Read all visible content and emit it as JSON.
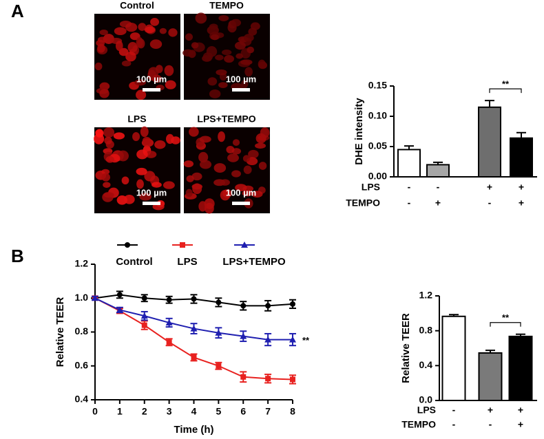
{
  "figure": {
    "panel_labels": [
      "A",
      "B"
    ]
  },
  "images": [
    {
      "title": "Control",
      "scale_bar": "100 µm"
    },
    {
      "title": "TEMPO",
      "scale_bar": "100 µm"
    },
    {
      "title": "LPS",
      "scale_bar": "100 µm"
    },
    {
      "title": "LPS+TEMPO",
      "scale_bar": "100 µm"
    }
  ],
  "chart_data": [
    {
      "type": "bar",
      "ylabel": "DHE intensity",
      "ylim": [
        0,
        0.15
      ],
      "yticks": [
        {
          "value": 0,
          "label": "0.00"
        },
        {
          "value": 0.05,
          "label": "0.05"
        },
        {
          "value": 0.1,
          "label": "0.10"
        },
        {
          "value": 0.15,
          "label": "0.15"
        }
      ],
      "values": [
        0.045,
        0.02,
        0.115,
        0.064
      ],
      "errors": [
        0.006,
        0.004,
        0.011,
        0.009
      ],
      "colors": [
        "#ffffff",
        "#a6a6a6",
        "#6e6e6e",
        "#000000"
      ],
      "conditions": [
        {
          "name": "LPS",
          "signs": [
            "-",
            "-",
            "+",
            "+"
          ]
        },
        {
          "name": "TEMPO",
          "signs": [
            "-",
            "+",
            "-",
            "+"
          ]
        }
      ],
      "annotation": "**"
    },
    {
      "type": "line",
      "xlabel": "Time (h)",
      "ylabel": "Relative TEER",
      "x": [
        0,
        1,
        2,
        3,
        4,
        5,
        6,
        7,
        8
      ],
      "xlim": [
        0,
        8
      ],
      "xticks": [
        0,
        1,
        2,
        3,
        4,
        5,
        6,
        7,
        8
      ],
      "ylim": [
        0.4,
        1.2
      ],
      "yticks": [
        0.4,
        0.6,
        0.8,
        {
          "value": 1,
          "label": "1.0"
        },
        1.2
      ],
      "series": [
        {
          "name": "Control",
          "color": "#000000",
          "marker": "circle",
          "values": [
            1.0,
            1.02,
            1.0,
            0.99,
            0.995,
            0.975,
            0.955,
            0.955,
            0.965
          ],
          "errors": [
            0.01,
            0.02,
            0.02,
            0.02,
            0.025,
            0.025,
            0.025,
            0.03,
            0.025
          ]
        },
        {
          "name": "LPS",
          "color": "#e8211f",
          "marker": "square",
          "values": [
            1.0,
            0.925,
            0.84,
            0.74,
            0.65,
            0.6,
            0.535,
            0.525,
            0.52
          ],
          "errors": [
            0.01,
            0.015,
            0.025,
            0.02,
            0.02,
            0.02,
            0.03,
            0.025,
            0.025
          ]
        },
        {
          "name": "LPS+TEMPO",
          "color": "#1f1fb0",
          "marker": "triangle",
          "values": [
            1.0,
            0.93,
            0.895,
            0.855,
            0.82,
            0.795,
            0.775,
            0.755,
            0.755
          ],
          "errors": [
            0.01,
            0.015,
            0.025,
            0.025,
            0.03,
            0.03,
            0.03,
            0.035,
            0.035
          ]
        }
      ],
      "annotation": "**"
    },
    {
      "type": "bar",
      "ylabel": "Relative TEER",
      "ylim": [
        0,
        1.2
      ],
      "yticks": [
        {
          "value": 0,
          "label": "0.0"
        },
        0.4,
        0.8,
        1.2
      ],
      "values": [
        0.965,
        0.545,
        0.735
      ],
      "errors": [
        0.02,
        0.03,
        0.025
      ],
      "colors": [
        "#ffffff",
        "#7a7a7a",
        "#000000"
      ],
      "conditions": [
        {
          "name": "LPS",
          "signs": [
            "-",
            "+",
            "+"
          ]
        },
        {
          "name": "TEMPO",
          "signs": [
            "-",
            "-",
            "+"
          ]
        }
      ],
      "annotation": "**"
    }
  ]
}
